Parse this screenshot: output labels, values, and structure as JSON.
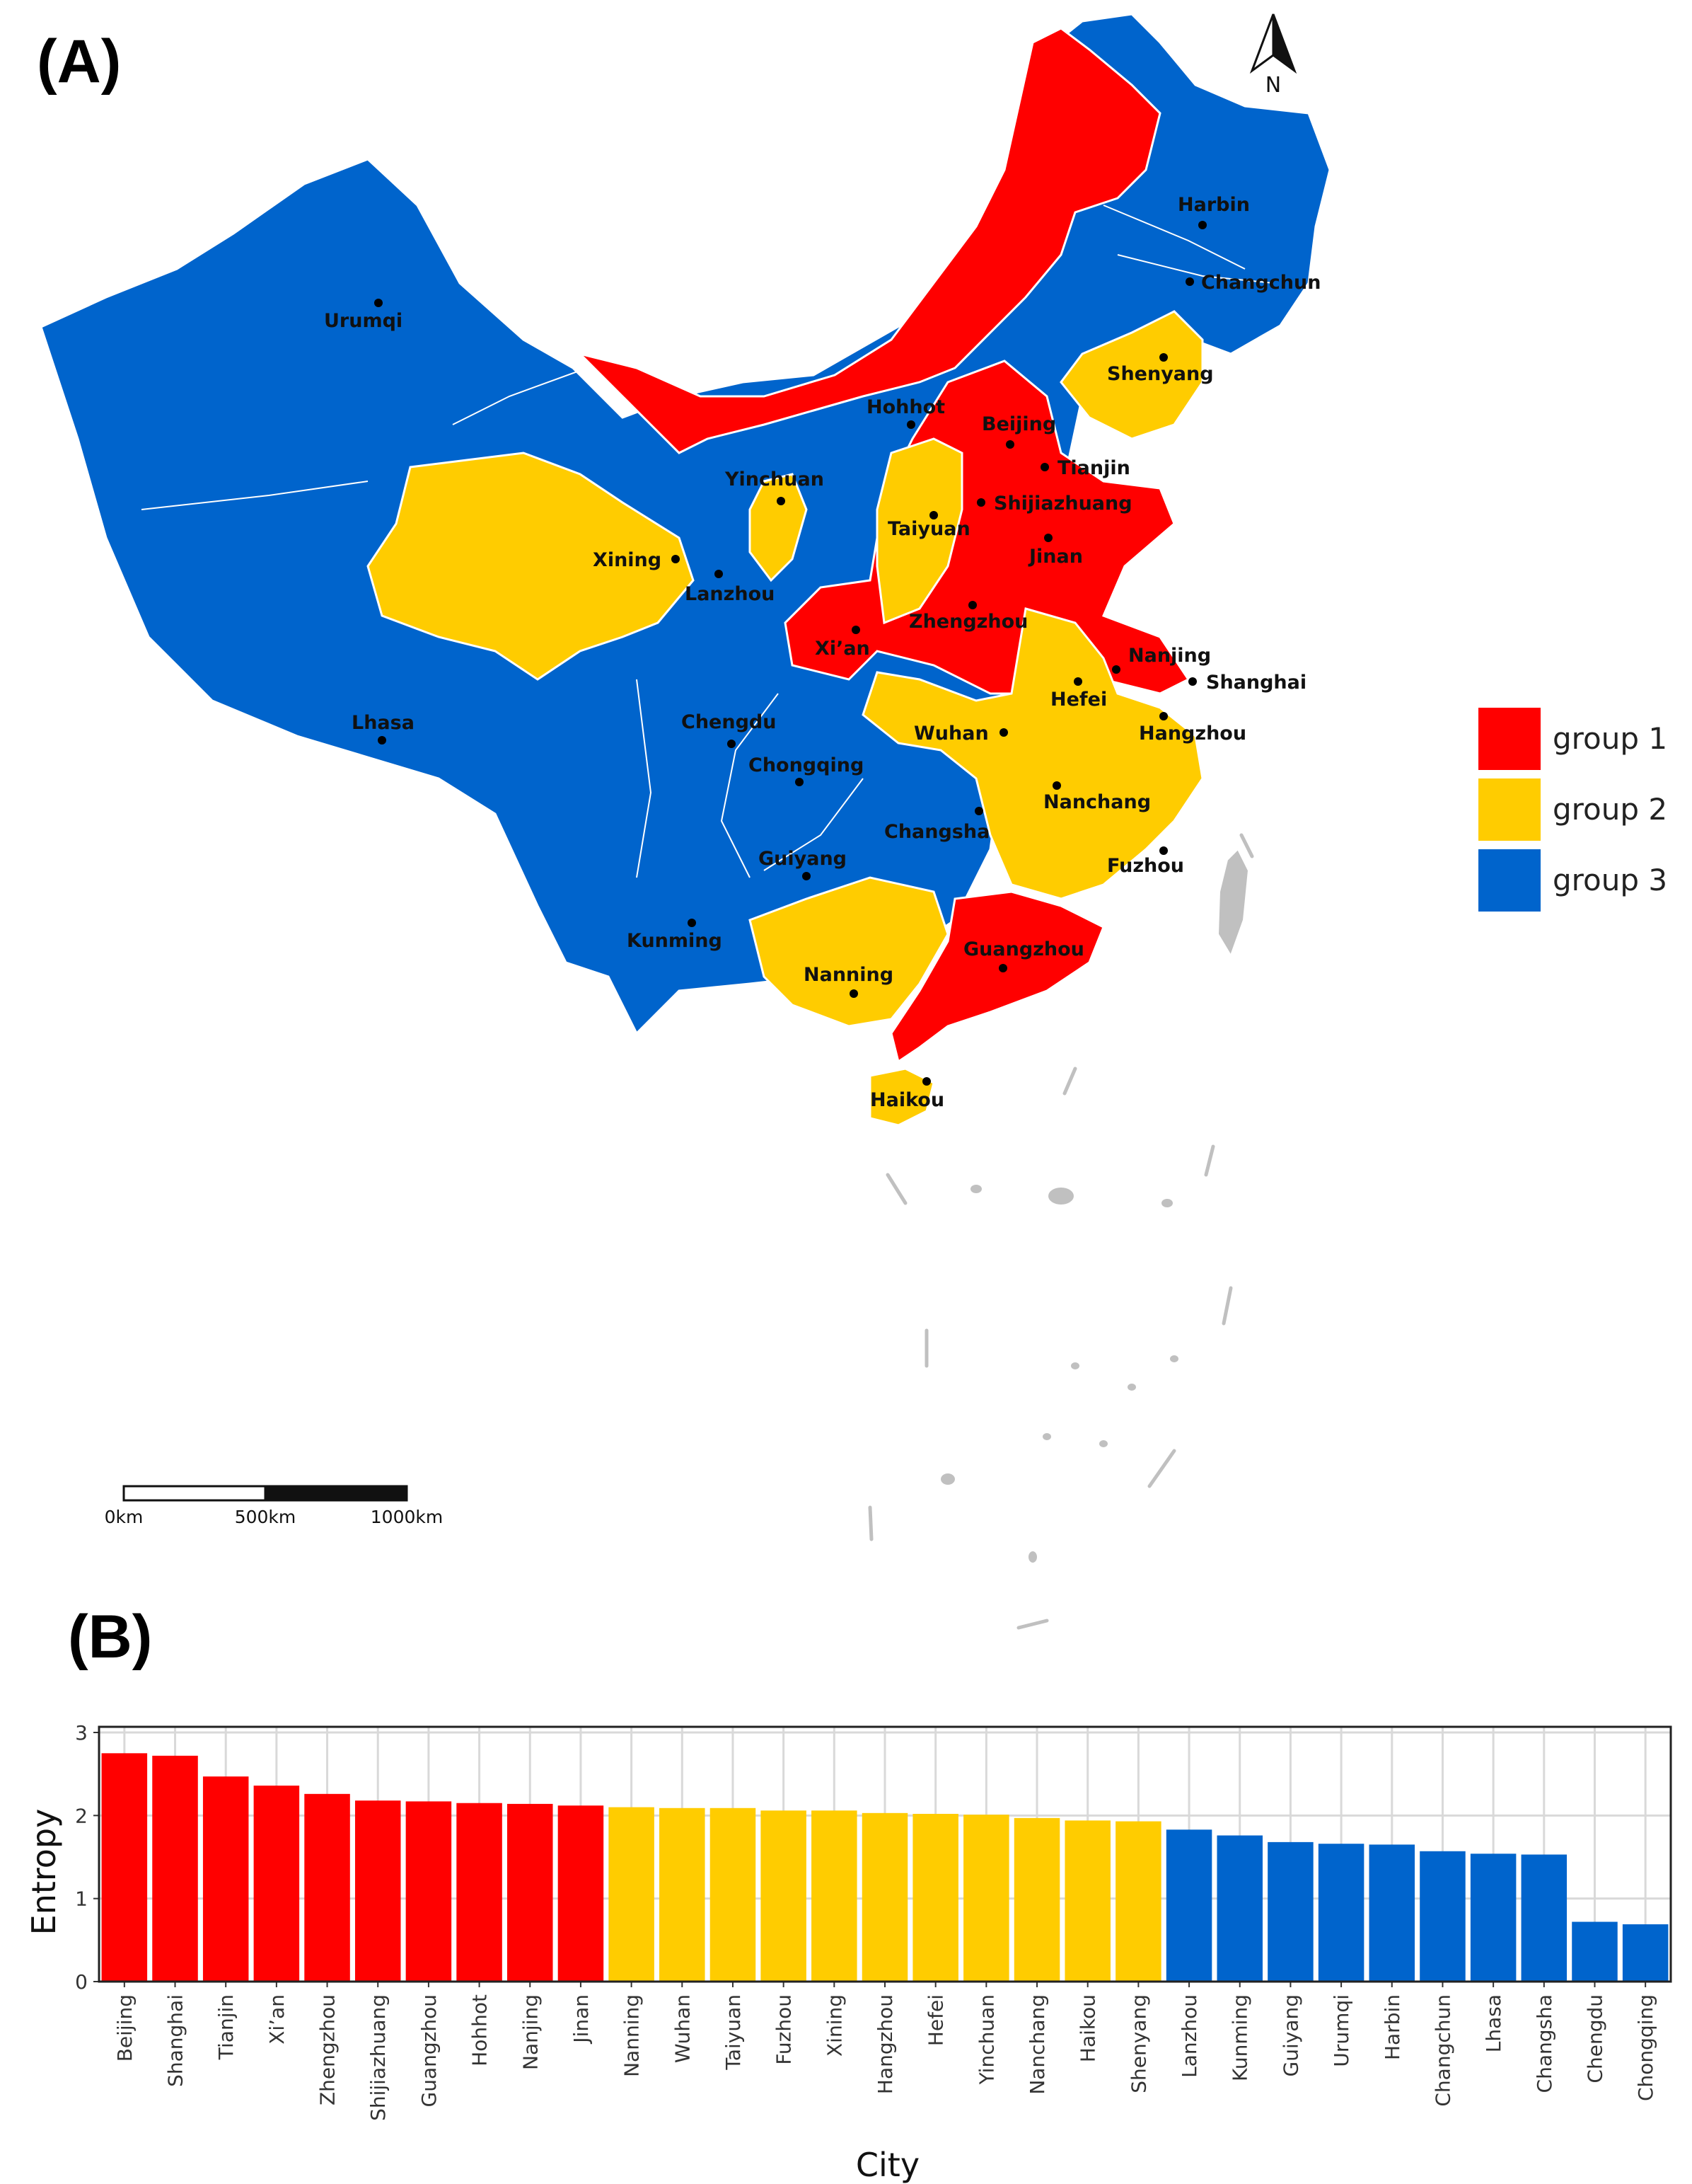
{
  "panels": {
    "a_label": "(A)",
    "b_label": "(B)"
  },
  "north_arrow": {
    "label": "N"
  },
  "scale_bar": {
    "labels": [
      "0km",
      "500km",
      "1000km"
    ]
  },
  "legend": [
    {
      "label": "group 1",
      "color": "#ff0000"
    },
    {
      "label": "group 2",
      "color": "#ffcc00"
    },
    {
      "label": "group 3",
      "color": "#0064cc"
    }
  ],
  "map_cities": [
    {
      "name": "Harbin",
      "group": 3
    },
    {
      "name": "Changchun",
      "group": 3
    },
    {
      "name": "Urumqi",
      "group": 3
    },
    {
      "name": "Shenyang",
      "group": 2
    },
    {
      "name": "Hohhot",
      "group": 1
    },
    {
      "name": "Beijing",
      "group": 1
    },
    {
      "name": "Tianjin",
      "group": 1
    },
    {
      "name": "Yinchuan",
      "group": 2
    },
    {
      "name": "Shijiazhuang",
      "group": 1
    },
    {
      "name": "Taiyuan",
      "group": 2
    },
    {
      "name": "Xining",
      "group": 2
    },
    {
      "name": "Jinan",
      "group": 1
    },
    {
      "name": "Lanzhou",
      "group": 3
    },
    {
      "name": "Zhengzhou",
      "group": 1
    },
    {
      "name": "Xi’an",
      "group": 1
    },
    {
      "name": "Nanjing",
      "group": 1
    },
    {
      "name": "Hefei",
      "group": 2
    },
    {
      "name": "Shanghai",
      "group": 1
    },
    {
      "name": "Lhasa",
      "group": 3
    },
    {
      "name": "Chengdu",
      "group": 3
    },
    {
      "name": "Wuhan",
      "group": 2
    },
    {
      "name": "Hangzhou",
      "group": 2
    },
    {
      "name": "Chongqing",
      "group": 3
    },
    {
      "name": "Nanchang",
      "group": 2
    },
    {
      "name": "Changsha",
      "group": 3
    },
    {
      "name": "Guiyang",
      "group": 3
    },
    {
      "name": "Fuzhou",
      "group": 2
    },
    {
      "name": "Kunming",
      "group": 3
    },
    {
      "name": "Nanning",
      "group": 2
    },
    {
      "name": "Guangzhou",
      "group": 1
    },
    {
      "name": "Haikou",
      "group": 2
    }
  ],
  "chart_data": {
    "type": "bar",
    "xlabel": "City",
    "ylabel": "Entropy",
    "ylim": [
      0,
      3
    ],
    "yticks": [
      0,
      1,
      2,
      3
    ],
    "grid": true,
    "categories": [
      "Beijing",
      "Shanghai",
      "Tianjin",
      "Xi’an",
      "Zhengzhou",
      "Shijiazhuang",
      "Guangzhou",
      "Hohhot",
      "Nanjing",
      "Jinan",
      "Nanning",
      "Wuhan",
      "Taiyuan",
      "Fuzhou",
      "Xining",
      "Hangzhou",
      "Hefei",
      "Yinchuan",
      "Nanchang",
      "Haikou",
      "Shenyang",
      "Lanzhou",
      "Kunming",
      "Guiyang",
      "Urumqi",
      "Harbin",
      "Changchun",
      "Lhasa",
      "Changsha",
      "Chengdu",
      "Chongqing"
    ],
    "values": [
      2.75,
      2.72,
      2.47,
      2.36,
      2.26,
      2.18,
      2.17,
      2.15,
      2.14,
      2.12,
      2.1,
      2.09,
      2.09,
      2.06,
      2.06,
      2.03,
      2.02,
      2.01,
      1.97,
      1.94,
      1.93,
      1.83,
      1.76,
      1.68,
      1.66,
      1.65,
      1.57,
      1.54,
      1.53,
      0.72,
      0.69
    ],
    "groups": [
      1,
      1,
      1,
      1,
      1,
      1,
      1,
      1,
      1,
      1,
      2,
      2,
      2,
      2,
      2,
      2,
      2,
      2,
      2,
      2,
      2,
      3,
      3,
      3,
      3,
      3,
      3,
      3,
      3,
      3,
      3
    ]
  }
}
